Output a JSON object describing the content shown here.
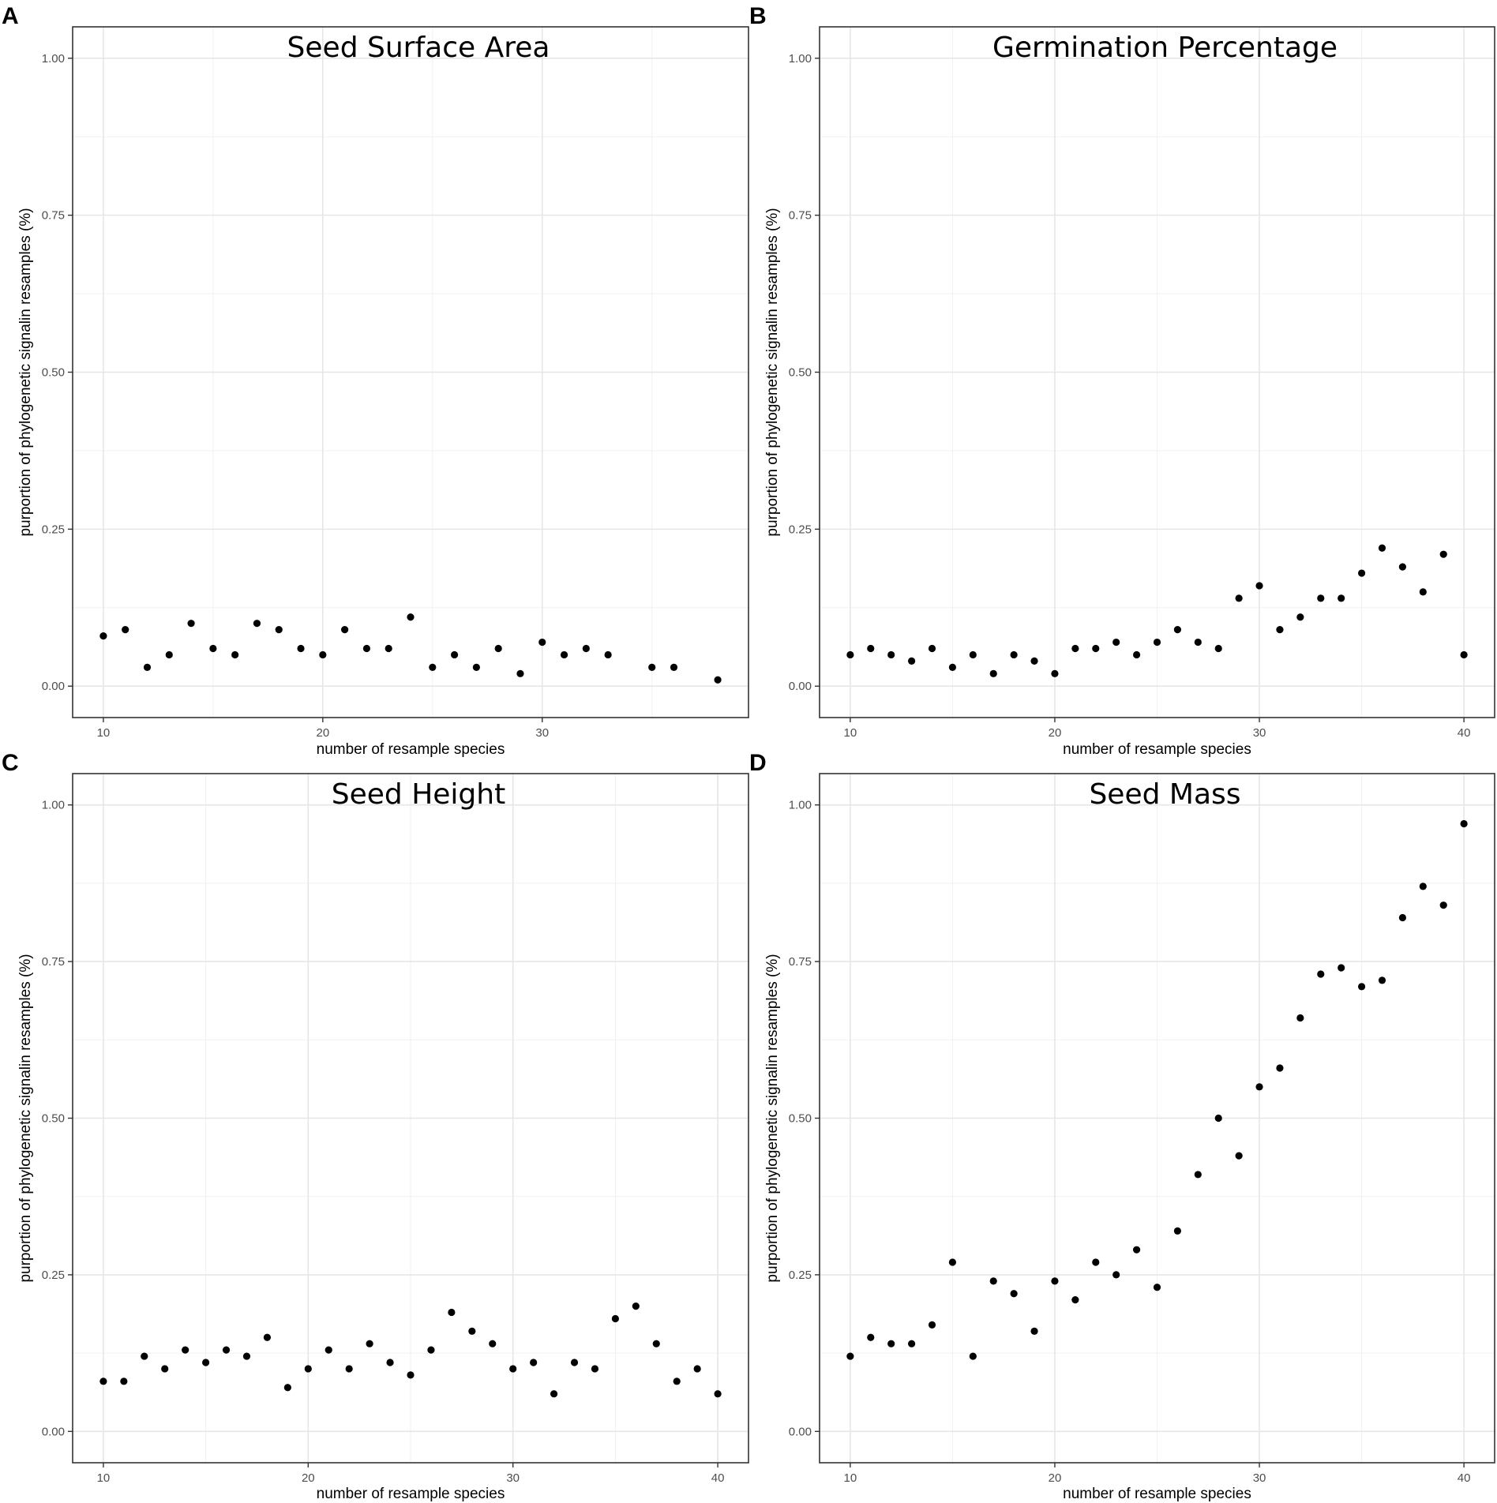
{
  "chart_data": [
    {
      "type": "scatter",
      "panel": "A",
      "title": "Seed Surface Area",
      "xlabel": "number of resample species",
      "ylabel": "purportion of phylogenetic signalin resamples (%)",
      "xlim": [
        8.6,
        39.4
      ],
      "ylim": [
        -0.05,
        1.05
      ],
      "xticks": [
        10,
        20,
        30
      ],
      "yticks": [
        "0.00",
        "0.25",
        "0.50",
        "0.75",
        "1.00"
      ],
      "x": [
        10,
        11,
        12,
        13,
        14,
        15,
        16,
        17,
        18,
        19,
        20,
        21,
        22,
        23,
        24,
        25,
        26,
        27,
        28,
        29,
        30,
        31,
        32,
        33,
        35,
        36,
        38
      ],
      "y": [
        0.08,
        0.09,
        0.03,
        0.05,
        0.1,
        0.06,
        0.05,
        0.1,
        0.09,
        0.06,
        0.05,
        0.09,
        0.06,
        0.06,
        0.11,
        0.03,
        0.05,
        0.03,
        0.06,
        0.02,
        0.07,
        0.05,
        0.06,
        0.05,
        0.03,
        0.03,
        0.01
      ]
    },
    {
      "type": "scatter",
      "panel": "B",
      "title": "Germination Percentage",
      "xlabel": "number of resample species",
      "ylabel": "purportion of phylogenetic signalin resamples (%)",
      "xlim": [
        8.5,
        41.5
      ],
      "ylim": [
        -0.05,
        1.05
      ],
      "xticks": [
        10,
        20,
        30,
        40
      ],
      "yticks": [
        "0.00",
        "0.25",
        "0.50",
        "0.75",
        "1.00"
      ],
      "x": [
        10,
        11,
        12,
        13,
        14,
        15,
        16,
        17,
        18,
        19,
        20,
        21,
        22,
        23,
        24,
        25,
        26,
        27,
        28,
        29,
        30,
        31,
        32,
        33,
        34,
        35,
        36,
        37,
        38,
        39,
        40
      ],
      "y": [
        0.05,
        0.06,
        0.05,
        0.04,
        0.06,
        0.03,
        0.05,
        0.02,
        0.05,
        0.04,
        0.02,
        0.06,
        0.06,
        0.07,
        0.05,
        0.07,
        0.09,
        0.07,
        0.06,
        0.14,
        0.16,
        0.09,
        0.11,
        0.14,
        0.14,
        0.18,
        0.22,
        0.19,
        0.15,
        0.21,
        0.05
      ]
    },
    {
      "type": "scatter",
      "panel": "C",
      "title": "Seed Height",
      "xlabel": "number of resample species",
      "ylabel": "purportion of phylogenetic signalin resamples (%)",
      "xlim": [
        8.5,
        41.5
      ],
      "ylim": [
        -0.05,
        1.05
      ],
      "xticks": [
        10,
        20,
        30,
        40
      ],
      "yticks": [
        "0.00",
        "0.25",
        "0.50",
        "0.75",
        "1.00"
      ],
      "x": [
        10,
        11,
        12,
        13,
        14,
        15,
        16,
        17,
        18,
        19,
        20,
        21,
        22,
        23,
        24,
        25,
        26,
        27,
        28,
        29,
        30,
        31,
        32,
        33,
        34,
        35,
        36,
        37,
        38,
        39,
        40
      ],
      "y": [
        0.08,
        0.08,
        0.12,
        0.1,
        0.13,
        0.11,
        0.13,
        0.12,
        0.15,
        0.07,
        0.1,
        0.13,
        0.1,
        0.14,
        0.11,
        0.09,
        0.13,
        0.19,
        0.16,
        0.14,
        0.1,
        0.11,
        0.06,
        0.11,
        0.1,
        0.18,
        0.2,
        0.14,
        0.08,
        0.1,
        0.06
      ]
    },
    {
      "type": "scatter",
      "panel": "D",
      "title": "Seed Mass",
      "xlabel": "number of resample species",
      "ylabel": "purportion of phylogenetic signalin resamples (%)",
      "xlim": [
        8.5,
        41.5
      ],
      "ylim": [
        -0.05,
        1.05
      ],
      "xticks": [
        10,
        20,
        30,
        40
      ],
      "yticks": [
        "0.00",
        "0.25",
        "0.50",
        "0.75",
        "1.00"
      ],
      "x": [
        10,
        11,
        12,
        13,
        14,
        15,
        16,
        17,
        18,
        19,
        20,
        21,
        22,
        23,
        24,
        25,
        26,
        27,
        28,
        29,
        30,
        31,
        32,
        33,
        34,
        35,
        36,
        37,
        38,
        39,
        40
      ],
      "y": [
        0.12,
        0.15,
        0.14,
        0.14,
        0.17,
        0.27,
        0.12,
        0.24,
        0.22,
        0.16,
        0.24,
        0.21,
        0.27,
        0.25,
        0.29,
        0.23,
        0.32,
        0.41,
        0.5,
        0.44,
        0.55,
        0.58,
        0.66,
        0.73,
        0.74,
        0.71,
        0.72,
        0.82,
        0.87,
        0.84,
        0.97
      ]
    }
  ]
}
